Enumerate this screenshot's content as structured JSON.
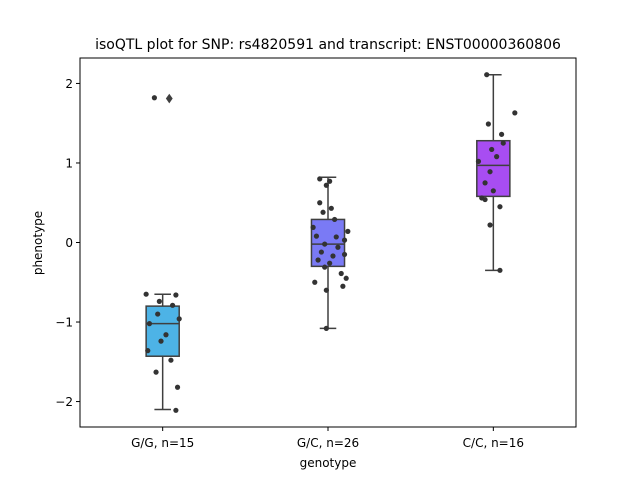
{
  "chart_data": {
    "type": "box",
    "title": "isoQTL plot for SNP: rs4820591 and transcript: ENST00000360806",
    "xlabel": "genotype",
    "ylabel": "phenotype",
    "ylim": [
      -2.32,
      2.32
    ],
    "yticks": [
      -2,
      -1,
      0,
      1,
      2
    ],
    "grid": false,
    "categories": [
      "G/G, n=15",
      "G/C, n=26",
      "C/C, n=16"
    ],
    "colors": [
      "#4db3e6",
      "#7a7af5",
      "#a84df2"
    ],
    "boxes": [
      {
        "q1": -1.43,
        "median": -1.02,
        "q3": -0.8,
        "whisker_low": -2.1,
        "whisker_high": -0.65,
        "outliers": [
          1.81
        ]
      },
      {
        "q1": -0.3,
        "median": -0.02,
        "q3": 0.29,
        "whisker_low": -1.08,
        "whisker_high": 0.82,
        "outliers": []
      },
      {
        "q1": 0.58,
        "median": 0.97,
        "q3": 1.28,
        "whisker_low": -0.35,
        "whisker_high": 2.11,
        "outliers": []
      }
    ],
    "points": [
      [
        [
          -0.05,
          1.82
        ],
        [
          -0.1,
          -0.65
        ],
        [
          0.08,
          -0.66
        ],
        [
          -0.02,
          -0.74
        ],
        [
          0.06,
          -0.79
        ],
        [
          -0.03,
          -0.9
        ],
        [
          0.1,
          -0.96
        ],
        [
          -0.08,
          -1.02
        ],
        [
          0.02,
          -1.16
        ],
        [
          -0.01,
          -1.24
        ],
        [
          -0.09,
          -1.36
        ],
        [
          0.05,
          -1.48
        ],
        [
          -0.04,
          -1.63
        ],
        [
          0.09,
          -1.82
        ],
        [
          0.08,
          -2.11
        ]
      ],
      [
        [
          -0.05,
          0.8
        ],
        [
          0.01,
          0.77
        ],
        [
          -0.01,
          0.72
        ],
        [
          -0.05,
          0.5
        ],
        [
          0.02,
          0.43
        ],
        [
          -0.03,
          0.38
        ],
        [
          0.04,
          0.29
        ],
        [
          -0.09,
          0.19
        ],
        [
          0.12,
          0.14
        ],
        [
          -0.07,
          0.08
        ],
        [
          0.05,
          0.07
        ],
        [
          0.1,
          0.03
        ],
        [
          -0.02,
          -0.02
        ],
        [
          0.06,
          -0.06
        ],
        [
          -0.04,
          -0.12
        ],
        [
          0.1,
          -0.15
        ],
        [
          0.03,
          -0.17
        ],
        [
          -0.06,
          -0.22
        ],
        [
          0.01,
          -0.26
        ],
        [
          -0.02,
          -0.31
        ],
        [
          0.08,
          -0.39
        ],
        [
          0.11,
          -0.45
        ],
        [
          -0.08,
          -0.5
        ],
        [
          0.09,
          -0.55
        ],
        [
          -0.01,
          -0.6
        ],
        [
          -0.01,
          -1.08
        ]
      ],
      [
        [
          -0.04,
          2.11
        ],
        [
          0.13,
          1.63
        ],
        [
          -0.03,
          1.49
        ],
        [
          0.05,
          1.36
        ],
        [
          0.06,
          1.25
        ],
        [
          -0.01,
          1.17
        ],
        [
          0.02,
          1.08
        ],
        [
          -0.09,
          1.02
        ],
        [
          -0.02,
          0.89
        ],
        [
          -0.05,
          0.75
        ],
        [
          0.0,
          0.65
        ],
        [
          -0.07,
          0.56
        ],
        [
          -0.05,
          0.54
        ],
        [
          0.04,
          0.45
        ],
        [
          -0.02,
          0.22
        ],
        [
          0.04,
          -0.35
        ]
      ]
    ]
  }
}
